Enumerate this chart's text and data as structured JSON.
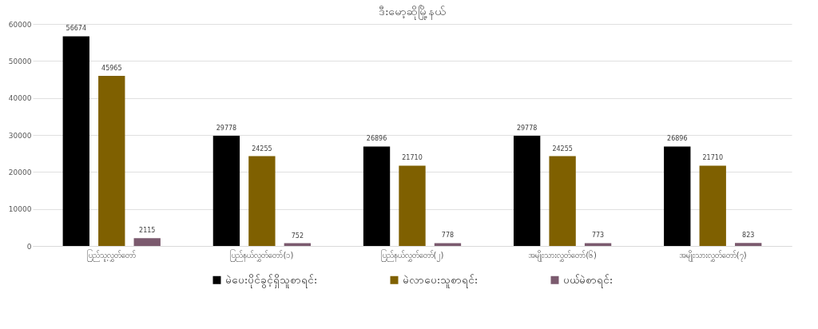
{
  "chart_data": {
    "type": "bar",
    "title": "ဒီးမော့ဆိုမြို့နယ်",
    "categories": [
      "ပြည်သူ့လွှတ်တော်",
      "ပြည်နယ်လွှတ်တော်(၁)",
      "ပြည်နယ်လွှတ်တော်(၂)",
      "အမျိုးသားလွှတ်တော်(၆)",
      "အမျိုးသားလွှတ်တော်(၇)"
    ],
    "series": [
      {
        "name": "မဲပေးပိုင်ခွင့်ရှိသူစာရင်း",
        "color": "#000000",
        "values": [
          56674,
          29778,
          26896,
          29778,
          26896
        ]
      },
      {
        "name": "မဲလာပေးသူစာရင်း",
        "color": "#7f6000",
        "values": [
          45965,
          24255,
          21710,
          24255,
          21710
        ]
      },
      {
        "name": "ပယ်မဲစာရင်း",
        "color": "#7b5a6e",
        "values": [
          2115,
          752,
          778,
          773,
          823
        ]
      }
    ],
    "ylim": [
      0,
      60000
    ],
    "yticks": [
      0,
      10000,
      20000,
      30000,
      40000,
      50000,
      60000
    ],
    "grid": "y",
    "legend": "bottom",
    "data_labels": true
  }
}
